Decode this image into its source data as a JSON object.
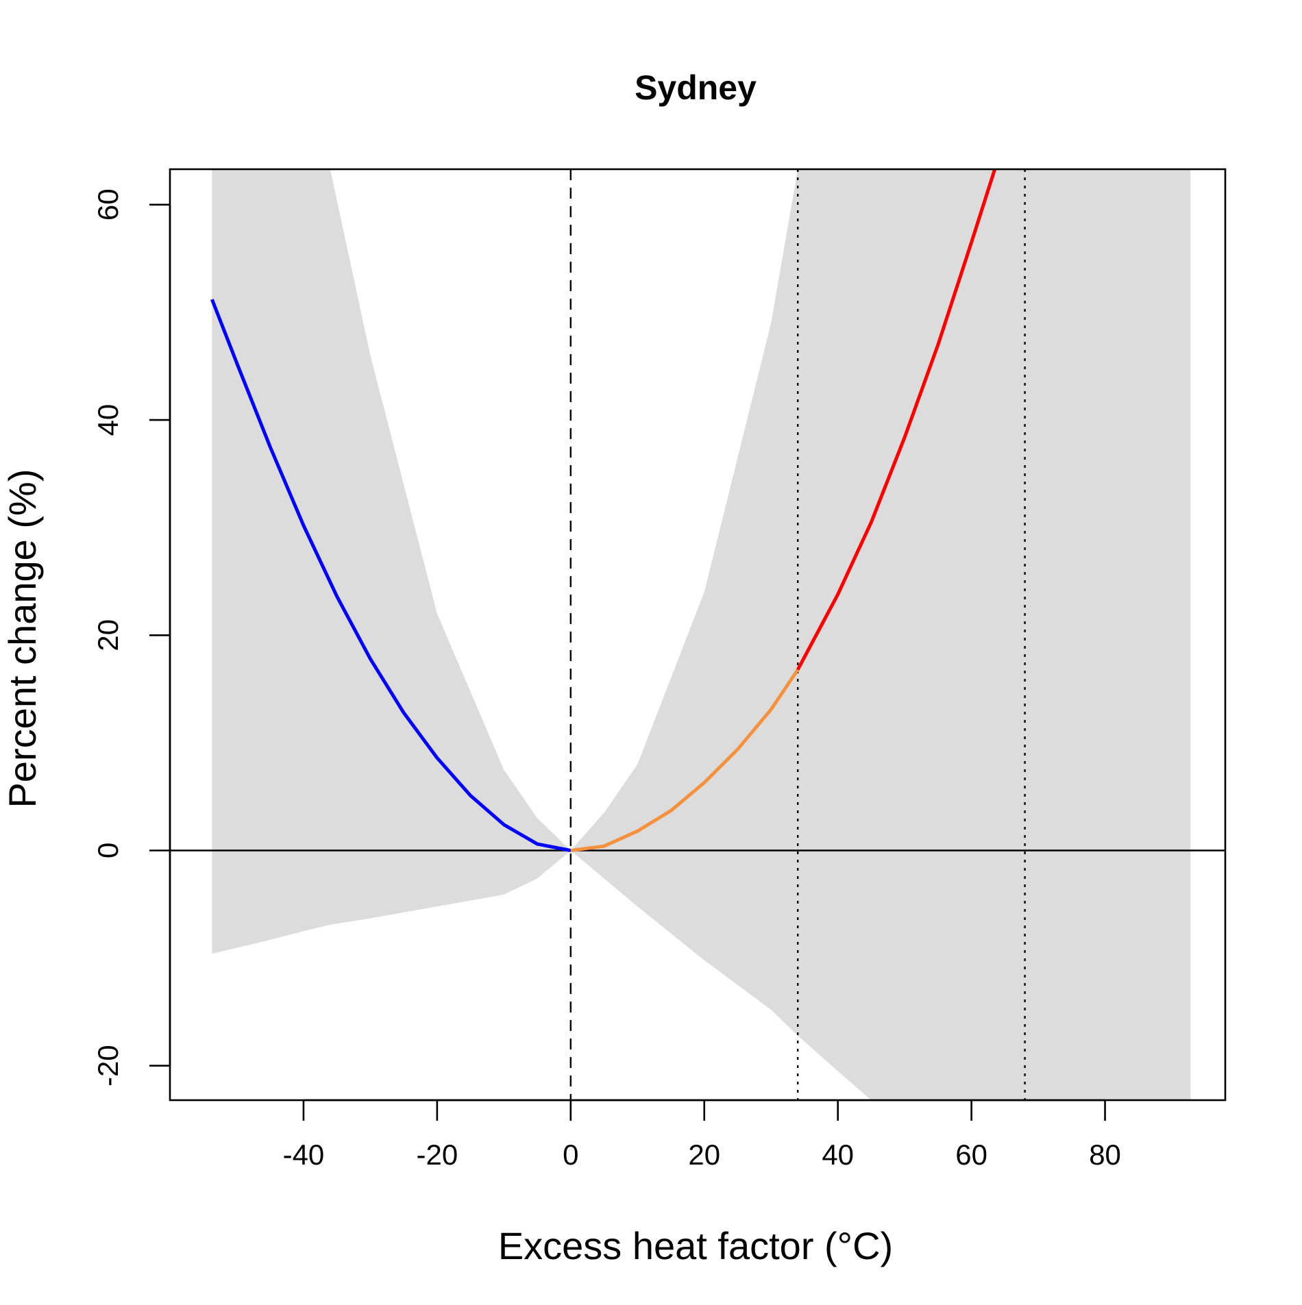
{
  "chart_data": {
    "type": "line",
    "title": "Sydney",
    "xlabel": "Excess heat factor (°C)",
    "ylabel": "Percent change (%)",
    "xlim": [
      -60,
      98
    ],
    "ylim": [
      -23.2,
      63.3
    ],
    "x_ticks": [
      -40,
      -20,
      0,
      20,
      40,
      60,
      80
    ],
    "x_tick_labels": [
      "-40",
      "-20",
      "0",
      "20",
      "40",
      "60",
      "80"
    ],
    "y_ticks": [
      -20,
      0,
      20,
      40,
      60
    ],
    "y_tick_labels": [
      "-20",
      "0",
      "20",
      "40",
      "60"
    ],
    "grid": false,
    "reference_lines": [
      {
        "orientation": "horizontal",
        "value": 0,
        "style": "solid"
      },
      {
        "orientation": "vertical",
        "value": 0,
        "style": "dashed"
      },
      {
        "orientation": "vertical",
        "value": 34,
        "style": "dotted"
      },
      {
        "orientation": "vertical",
        "value": 68,
        "style": "dotted"
      }
    ],
    "confidence_band": {
      "color": "#dcdcdc",
      "x": [
        -53.7,
        -45,
        -40,
        -36,
        -30,
        -20,
        -10,
        -5,
        0,
        5,
        10,
        20,
        30,
        34,
        40,
        45,
        60,
        80,
        92.8
      ],
      "upper": [
        63.3,
        63.3,
        63.3,
        63.3,
        46,
        22,
        7.5,
        3,
        0,
        3.5,
        8,
        24,
        49,
        63.3,
        63.3,
        63.3,
        63.3,
        63.3,
        63.3
      ],
      "lower": [
        -9.6,
        -8.3,
        -7.5,
        -6.9,
        -6.3,
        -5.2,
        -4.1,
        -2.6,
        0,
        -2.6,
        -5.2,
        -10.2,
        -14.8,
        -17.2,
        -20.5,
        -23.2,
        -23.2,
        -23.2,
        -23.2
      ]
    },
    "series": [
      {
        "color": "#0000ff",
        "x": [
          -53.7,
          -50,
          -45,
          -40,
          -35,
          -30,
          -25,
          -20,
          -15,
          -10,
          -5,
          0
        ],
        "values": [
          51.2,
          45.3,
          37.5,
          30.2,
          23.6,
          17.8,
          12.8,
          8.6,
          5.1,
          2.4,
          0.6,
          0
        ]
      },
      {
        "color": "#f5913d",
        "x": [
          0,
          5,
          10,
          15,
          20,
          25,
          30,
          34
        ],
        "values": [
          0,
          0.4,
          1.8,
          3.7,
          6.3,
          9.4,
          13.1,
          16.8
        ]
      },
      {
        "color": "#ff0000",
        "x": [
          34,
          40,
          45,
          50,
          55,
          60,
          63.5
        ],
        "values": [
          16.8,
          23.8,
          30.5,
          38.4,
          47,
          56.5,
          63.3
        ]
      }
    ]
  }
}
